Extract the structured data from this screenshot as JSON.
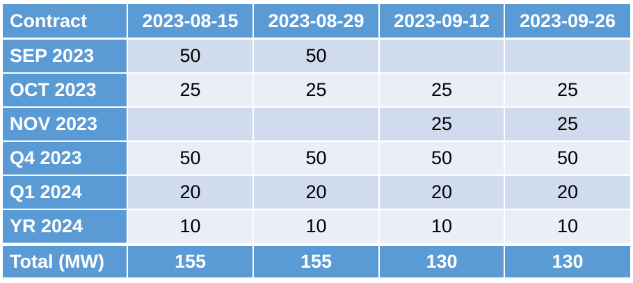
{
  "table": {
    "headers": [
      "Contract",
      "2023-08-15",
      "2023-08-29",
      "2023-09-12",
      "2023-09-26"
    ],
    "rows": [
      {
        "label": "SEP 2023",
        "values": [
          "50",
          "50",
          "",
          ""
        ]
      },
      {
        "label": "OCT 2023",
        "values": [
          "25",
          "25",
          "25",
          "25"
        ]
      },
      {
        "label": "NOV 2023",
        "values": [
          "",
          "",
          "25",
          "25"
        ]
      },
      {
        "label": "Q4 2023",
        "values": [
          "50",
          "50",
          "50",
          "50"
        ]
      },
      {
        "label": "Q1 2024",
        "values": [
          "20",
          "20",
          "20",
          "20"
        ]
      },
      {
        "label": "YR 2024",
        "values": [
          "10",
          "10",
          "10",
          "10"
        ]
      }
    ],
    "total": {
      "label": "Total (MW)",
      "values": [
        "155",
        "155",
        "130",
        "130"
      ]
    }
  },
  "colors": {
    "header_fill": "#5b9bd5",
    "band_dark": "#d0dbee",
    "band_light": "#e9eef7",
    "header_text": "#ffffff",
    "body_text": "#000000"
  }
}
